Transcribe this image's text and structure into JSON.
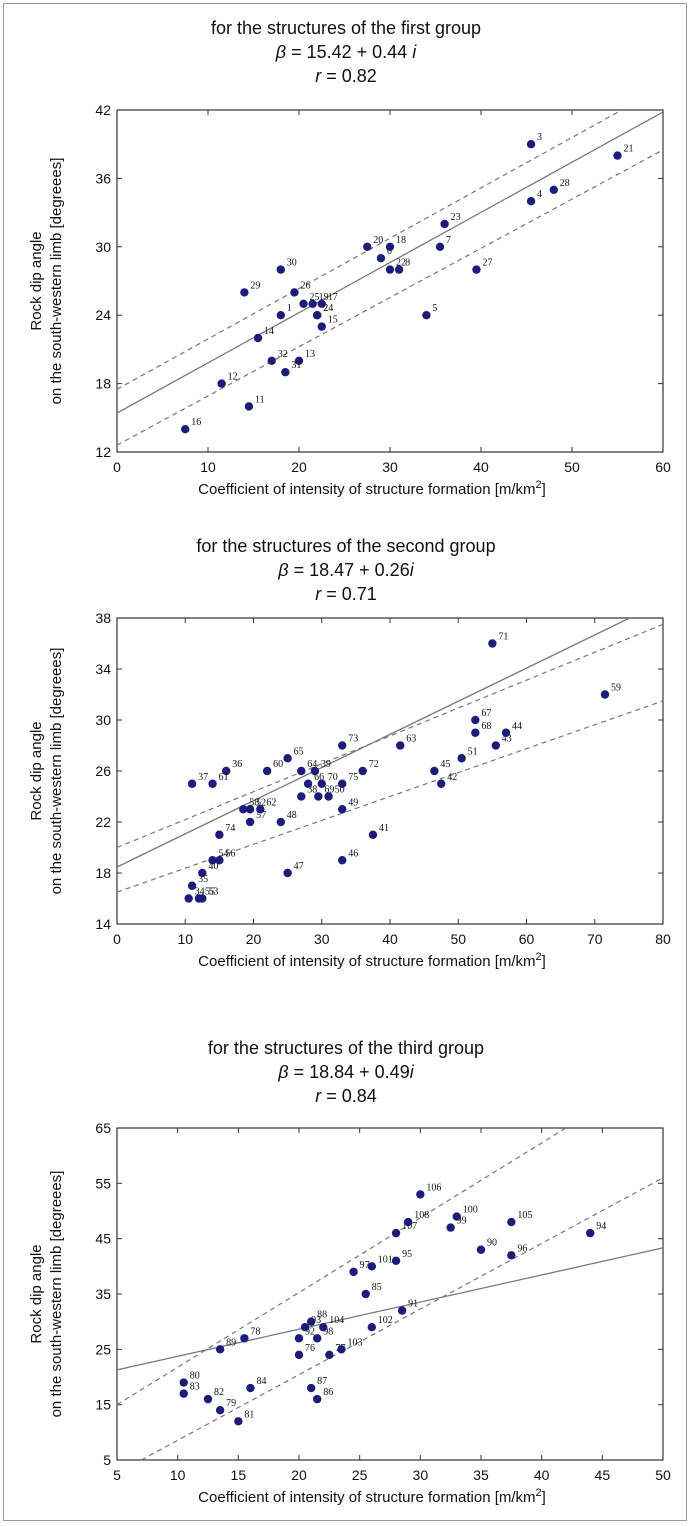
{
  "chart_data": [
    {
      "type": "scatter",
      "title": "for the structures of the first group",
      "equation": {
        "beta": "β",
        "rest": " = 15.42 + 0.44 ",
        "var": "i"
      },
      "r_line": {
        "r": "r",
        "rest": " = 0.82"
      },
      "xlabel": "Coefficient of intensity of structure formation [m/km",
      "xlabel_sup": "2",
      "xlabel_end": "]",
      "ylabel_line1": "Rock dip angle",
      "ylabel_line2": "on the south-western limb [degreees]",
      "xlim": [
        0,
        60
      ],
      "ylim": [
        12,
        42
      ],
      "xticks": [
        0,
        10,
        20,
        30,
        40,
        50,
        60
      ],
      "yticks": [
        12,
        18,
        24,
        30,
        36,
        42
      ],
      "regression": {
        "intercept": 15.42,
        "slope": 0.44
      },
      "confidence": {
        "upper": [
          [
            0,
            17.5
          ],
          [
            60,
            44
          ]
        ],
        "lower": [
          [
            0,
            12.6
          ],
          [
            60,
            38.5
          ]
        ]
      },
      "point_color": "#1c1c7a",
      "points": [
        {
          "label": "1",
          "x": 18,
          "y": 24
        },
        {
          "label": "2",
          "x": 22,
          "y": 24
        },
        {
          "label": "3",
          "x": 45.5,
          "y": 39
        },
        {
          "label": "4",
          "x": 45.5,
          "y": 34
        },
        {
          "label": "5",
          "x": 34,
          "y": 24
        },
        {
          "label": "6",
          "x": 29,
          "y": 29
        },
        {
          "label": "7",
          "x": 35.5,
          "y": 30
        },
        {
          "label": "8",
          "x": 31,
          "y": 28
        },
        {
          "label": "11",
          "x": 14.5,
          "y": 16
        },
        {
          "label": "12",
          "x": 11.5,
          "y": 18
        },
        {
          "label": "13",
          "x": 20,
          "y": 20
        },
        {
          "label": "14",
          "x": 15.5,
          "y": 22
        },
        {
          "label": "15",
          "x": 22.5,
          "y": 23
        },
        {
          "label": "16",
          "x": 7.5,
          "y": 14
        },
        {
          "label": "17",
          "x": 22.5,
          "y": 25
        },
        {
          "label": "18",
          "x": 30,
          "y": 30
        },
        {
          "label": "19",
          "x": 21.5,
          "y": 25
        },
        {
          "label": "20",
          "x": 27.5,
          "y": 30
        },
        {
          "label": "21",
          "x": 55,
          "y": 38
        },
        {
          "label": "22",
          "x": 30,
          "y": 28
        },
        {
          "label": "23",
          "x": 36,
          "y": 32
        },
        {
          "label": "24",
          "x": 22,
          "y": 24
        },
        {
          "label": "25",
          "x": 20.5,
          "y": 25
        },
        {
          "label": "26",
          "x": 19.5,
          "y": 26
        },
        {
          "label": "27",
          "x": 39.5,
          "y": 28
        },
        {
          "label": "28",
          "x": 48,
          "y": 35
        },
        {
          "label": "29",
          "x": 14,
          "y": 26
        },
        {
          "label": "30",
          "x": 18,
          "y": 28
        },
        {
          "label": "31",
          "x": 18.5,
          "y": 19
        },
        {
          "label": "32",
          "x": 17,
          "y": 20
        }
      ]
    },
    {
      "type": "scatter",
      "title": "for the structures of the second group",
      "equation": {
        "beta": "β",
        "rest": " = 18.47 + 0.26",
        "var": "i"
      },
      "r_line": {
        "r": "r",
        "rest": " = 0.71"
      },
      "xlabel": "Coefficient of intensity of structure formation [m/km",
      "xlabel_sup": "2",
      "xlabel_end": "]",
      "ylabel_line1": "Rock dip angle",
      "ylabel_line2": "on the south-western limb [degreees]",
      "xlim": [
        0,
        80
      ],
      "ylim": [
        14,
        38
      ],
      "xticks": [
        0,
        10,
        20,
        30,
        40,
        50,
        60,
        70,
        80
      ],
      "yticks": [
        14,
        18,
        22,
        26,
        30,
        34,
        38
      ],
      "regression": {
        "intercept": 18.47,
        "slope": 0.26
      },
      "confidence": {
        "upper": [
          [
            0,
            20
          ],
          [
            80,
            37.5
          ]
        ],
        "lower": [
          [
            0,
            16.5
          ],
          [
            80,
            31.5
          ]
        ]
      },
      "point_color": "#1c1c7a",
      "points": [
        {
          "label": "34",
          "x": 10.5,
          "y": 16
        },
        {
          "label": "35",
          "x": 11,
          "y": 17
        },
        {
          "label": "36",
          "x": 16,
          "y": 26
        },
        {
          "label": "37",
          "x": 11,
          "y": 25
        },
        {
          "label": "38",
          "x": 27,
          "y": 24
        },
        {
          "label": "39",
          "x": 29,
          "y": 26
        },
        {
          "label": "40",
          "x": 12.5,
          "y": 18
        },
        {
          "label": "41",
          "x": 37.5,
          "y": 21
        },
        {
          "label": "42",
          "x": 47.5,
          "y": 25
        },
        {
          "label": "43",
          "x": 55.5,
          "y": 28
        },
        {
          "label": "44",
          "x": 57,
          "y": 29
        },
        {
          "label": "45",
          "x": 46.5,
          "y": 26
        },
        {
          "label": "46",
          "x": 33,
          "y": 19
        },
        {
          "label": "47",
          "x": 25,
          "y": 18
        },
        {
          "label": "48",
          "x": 24,
          "y": 22
        },
        {
          "label": "49",
          "x": 33,
          "y": 23
        },
        {
          "label": "50",
          "x": 31,
          "y": 24
        },
        {
          "label": "51",
          "x": 50.5,
          "y": 27
        },
        {
          "label": "52",
          "x": 19.5,
          "y": 23
        },
        {
          "label": "53",
          "x": 12.5,
          "y": 16
        },
        {
          "label": "54",
          "x": 14,
          "y": 19
        },
        {
          "label": "55",
          "x": 12,
          "y": 16
        },
        {
          "label": "56",
          "x": 15,
          "y": 19
        },
        {
          "label": "57",
          "x": 19.5,
          "y": 22
        },
        {
          "label": "58",
          "x": 18.5,
          "y": 23
        },
        {
          "label": "59",
          "x": 71.5,
          "y": 32
        },
        {
          "label": "60",
          "x": 22,
          "y": 26
        },
        {
          "label": "61",
          "x": 14,
          "y": 25
        },
        {
          "label": "62",
          "x": 21,
          "y": 23
        },
        {
          "label": "63",
          "x": 41.5,
          "y": 28
        },
        {
          "label": "64",
          "x": 27,
          "y": 26
        },
        {
          "label": "65",
          "x": 25,
          "y": 27
        },
        {
          "label": "66",
          "x": 28,
          "y": 25
        },
        {
          "label": "67",
          "x": 52.5,
          "y": 30
        },
        {
          "label": "68",
          "x": 52.5,
          "y": 29
        },
        {
          "label": "69",
          "x": 29.5,
          "y": 24
        },
        {
          "label": "70",
          "x": 30,
          "y": 25
        },
        {
          "label": "71",
          "x": 55,
          "y": 36
        },
        {
          "label": "72",
          "x": 36,
          "y": 26
        },
        {
          "label": "73",
          "x": 33,
          "y": 28
        },
        {
          "label": "74",
          "x": 15,
          "y": 21
        },
        {
          "label": "75",
          "x": 33,
          "y": 25
        }
      ]
    },
    {
      "type": "scatter",
      "title": "for the structures of the third group",
      "equation": {
        "beta": "β",
        "rest": " = 18.84 + 0.49",
        "var": "i"
      },
      "r_line": {
        "r": "r",
        "rest": " = 0.84"
      },
      "xlabel": "Coefficient of intensity of structure formation [m/km",
      "xlabel_sup": "2",
      "xlabel_end": "]",
      "ylabel_line1": "Rock dip angle",
      "ylabel_line2": "on the south-western limb [degreees]",
      "xlim": [
        5,
        50
      ],
      "ylim": [
        5,
        65
      ],
      "xticks": [
        5,
        10,
        15,
        20,
        25,
        30,
        35,
        40,
        45,
        50
      ],
      "yticks": [
        5,
        15,
        25,
        35,
        45,
        55,
        65
      ],
      "regression": {
        "intercept": 18.84,
        "slope": 0.49
      },
      "confidence": {
        "upper": [
          [
            5,
            15
          ],
          [
            42,
            65
          ]
        ],
        "lower": [
          [
            7,
            5
          ],
          [
            50,
            56
          ]
        ]
      },
      "point_color": "#1c1c7a",
      "points": [
        {
          "label": "76",
          "x": 20,
          "y": 24
        },
        {
          "label": "77",
          "x": 22.5,
          "y": 24
        },
        {
          "label": "78",
          "x": 15.5,
          "y": 27
        },
        {
          "label": "79",
          "x": 13.5,
          "y": 14
        },
        {
          "label": "80",
          "x": 10.5,
          "y": 19
        },
        {
          "label": "81",
          "x": 15,
          "y": 12
        },
        {
          "label": "82",
          "x": 12.5,
          "y": 16
        },
        {
          "label": "83",
          "x": 10.5,
          "y": 17
        },
        {
          "label": "84",
          "x": 16,
          "y": 18
        },
        {
          "label": "85",
          "x": 25.5,
          "y": 35
        },
        {
          "label": "86",
          "x": 21.5,
          "y": 16
        },
        {
          "label": "87",
          "x": 21,
          "y": 18
        },
        {
          "label": "88",
          "x": 21,
          "y": 30
        },
        {
          "label": "89",
          "x": 13.5,
          "y": 25
        },
        {
          "label": "90",
          "x": 35,
          "y": 43
        },
        {
          "label": "91",
          "x": 28.5,
          "y": 32
        },
        {
          "label": "92",
          "x": 20,
          "y": 27
        },
        {
          "label": "93",
          "x": 20.5,
          "y": 29
        },
        {
          "label": "94",
          "x": 44,
          "y": 46
        },
        {
          "label": "95",
          "x": 28,
          "y": 41
        },
        {
          "label": "96",
          "x": 37.5,
          "y": 42
        },
        {
          "label": "97",
          "x": 24.5,
          "y": 39
        },
        {
          "label": "98",
          "x": 21.5,
          "y": 27
        },
        {
          "label": "99",
          "x": 32.5,
          "y": 47
        },
        {
          "label": "100",
          "x": 33,
          "y": 49
        },
        {
          "label": "101",
          "x": 26,
          "y": 40
        },
        {
          "label": "102",
          "x": 26,
          "y": 29
        },
        {
          "label": "103",
          "x": 23.5,
          "y": 25
        },
        {
          "label": "104",
          "x": 22,
          "y": 29
        },
        {
          "label": "105",
          "x": 37.5,
          "y": 48
        },
        {
          "label": "106",
          "x": 30,
          "y": 53
        },
        {
          "label": "107",
          "x": 28,
          "y": 46
        },
        {
          "label": "108",
          "x": 29,
          "y": 48
        }
      ]
    }
  ]
}
